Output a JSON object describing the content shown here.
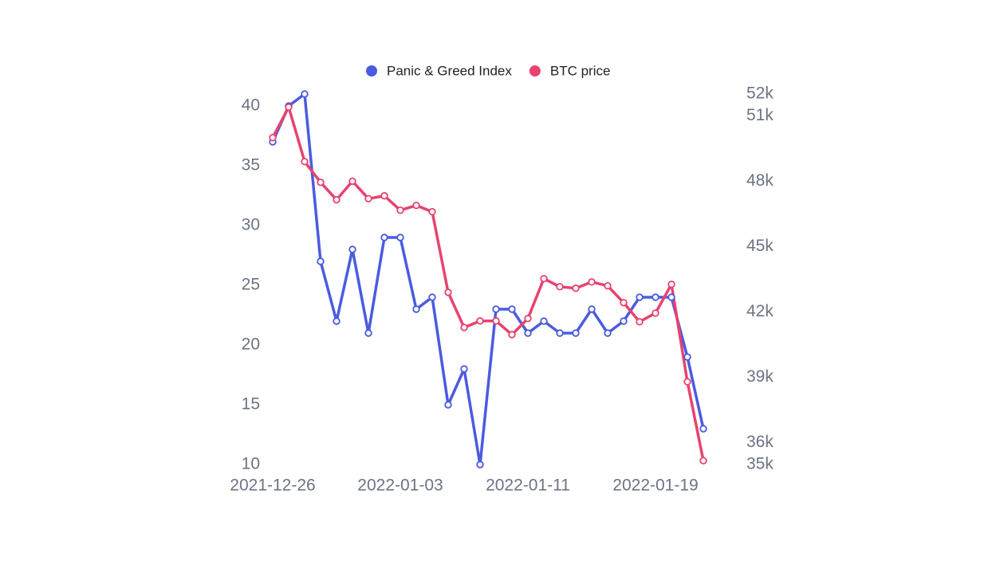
{
  "chart_data": {
    "type": "line",
    "x": [
      "2021-12-26",
      "2021-12-27",
      "2021-12-28",
      "2021-12-29",
      "2021-12-30",
      "2021-12-31",
      "2022-01-01",
      "2022-01-02",
      "2022-01-03",
      "2022-01-04",
      "2022-01-05",
      "2022-01-06",
      "2022-01-07",
      "2022-01-08",
      "2022-01-09",
      "2022-01-10",
      "2022-01-11",
      "2022-01-12",
      "2022-01-13",
      "2022-01-14",
      "2022-01-15",
      "2022-01-16",
      "2022-01-17",
      "2022-01-18",
      "2022-01-19",
      "2022-01-20",
      "2022-01-21",
      "2022-01-22"
    ],
    "xticks": [
      0,
      8,
      16,
      24
    ],
    "series": [
      {
        "name": "Panic & Greed Index",
        "color": "#4b5be0",
        "values": [
          37,
          40,
          41,
          27,
          22,
          28,
          21,
          29,
          29,
          23,
          24,
          15,
          18,
          10,
          23,
          23,
          21,
          22,
          21,
          21,
          23,
          21,
          22,
          24,
          24,
          24,
          19,
          13
        ]
      },
      {
        "name": "BTC price",
        "color": "#e8436e",
        "axis": "y2",
        "values": [
          50000,
          51400,
          48900,
          47950,
          47150,
          48000,
          47200,
          47330,
          46670,
          46890,
          46600,
          42900,
          41290,
          41590,
          41590,
          40960,
          41700,
          43530,
          43160,
          43090,
          43380,
          43200,
          42430,
          41550,
          41950,
          43270,
          38800,
          35180
        ]
      }
    ],
    "ylim": [
      10,
      41
    ],
    "yticks": [
      10,
      15,
      20,
      25,
      30,
      35,
      40
    ],
    "y2lim": [
      35000,
      52000
    ],
    "y2ticks": [
      {
        "value": 35000,
        "label": "35k"
      },
      {
        "value": 36000,
        "label": "36k"
      },
      {
        "value": 39000,
        "label": "39k"
      },
      {
        "value": 42000,
        "label": "42k"
      },
      {
        "value": 45000,
        "label": "45k"
      },
      {
        "value": 48000,
        "label": "48k"
      },
      {
        "value": 51000,
        "label": "51k"
      },
      {
        "value": 52000,
        "label": "52k"
      }
    ],
    "legend": "top",
    "grid": false
  }
}
